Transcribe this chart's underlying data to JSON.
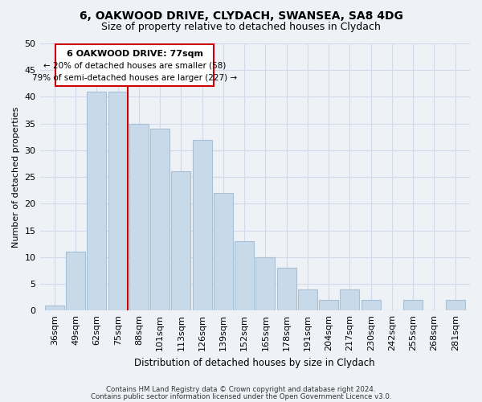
{
  "title": "6, OAKWOOD DRIVE, CLYDACH, SWANSEA, SA8 4DG",
  "subtitle": "Size of property relative to detached houses in Clydach",
  "xlabel": "Distribution of detached houses by size in Clydach",
  "ylabel": "Number of detached properties",
  "bar_color": "#c8d9ea",
  "bar_edge_color": "#a8c0d6",
  "categories": [
    "36sqm",
    "49sqm",
    "62sqm",
    "75sqm",
    "88sqm",
    "101sqm",
    "113sqm",
    "126sqm",
    "139sqm",
    "152sqm",
    "165sqm",
    "178sqm",
    "191sqm",
    "204sqm",
    "217sqm",
    "230sqm",
    "242sqm",
    "255sqm",
    "268sqm",
    "281sqm"
  ],
  "values": [
    1,
    11,
    41,
    41,
    35,
    34,
    26,
    32,
    22,
    13,
    10,
    8,
    4,
    2,
    4,
    2,
    0,
    2,
    0,
    2
  ],
  "ylim": [
    0,
    50
  ],
  "yticks": [
    0,
    5,
    10,
    15,
    20,
    25,
    30,
    35,
    40,
    45,
    50
  ],
  "marker_label": "6 OAKWOOD DRIVE: 77sqm",
  "annotation_line1": "← 20% of detached houses are smaller (58)",
  "annotation_line2": "79% of semi-detached houses are larger (227) →",
  "vline_color": "#cc0000",
  "annotation_box_edge": "#cc0000",
  "footer1": "Contains HM Land Registry data © Crown copyright and database right 2024.",
  "footer2": "Contains public sector information licensed under the Open Government Licence v3.0.",
  "background_color": "#eef2f7",
  "grid_color": "#d0dae8",
  "title_fontsize": 10,
  "subtitle_fontsize": 9
}
